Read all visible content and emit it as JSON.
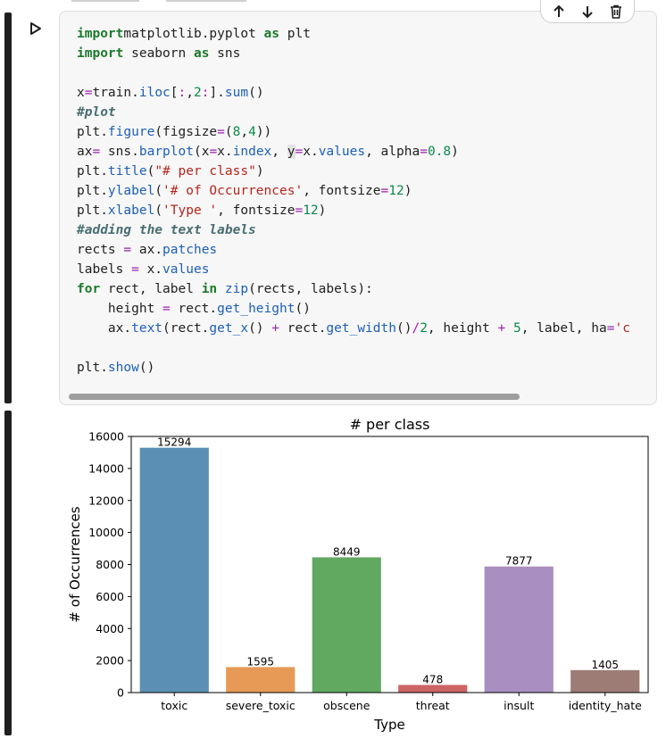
{
  "toolbar": {
    "move_up": "arrow-up-icon",
    "move_down": "arrow-down-icon",
    "delete": "trash-icon"
  },
  "code_lines": [
    [
      [
        "kw",
        "import"
      ],
      [
        "",
        "matplotlib.pyplot "
      ],
      [
        "kw",
        "as"
      ],
      [
        "",
        " plt"
      ]
    ],
    [
      [
        "kw",
        "import"
      ],
      [
        "",
        " seaborn "
      ],
      [
        "kw",
        "as"
      ],
      [
        "",
        " sns"
      ]
    ],
    [],
    [
      [
        "",
        "x"
      ],
      [
        "op",
        "="
      ],
      [
        "",
        "train."
      ],
      [
        "at",
        "iloc"
      ],
      [
        "",
        "["
      ],
      [
        "op",
        ":"
      ],
      [
        "",
        ","
      ],
      [
        "nm",
        "2"
      ],
      [
        "op",
        ":"
      ],
      [
        "",
        "]."
      ],
      [
        "fn",
        "sum"
      ],
      [
        "",
        "()"
      ]
    ],
    [
      [
        "cm",
        "#plot"
      ]
    ],
    [
      [
        "",
        "plt."
      ],
      [
        "fn",
        "figure"
      ],
      [
        "",
        "(figsize"
      ],
      [
        "op",
        "="
      ],
      [
        "",
        "("
      ],
      [
        "nm",
        "8"
      ],
      [
        "",
        ","
      ],
      [
        "nm",
        "4"
      ],
      [
        "",
        "))"
      ]
    ],
    [
      [
        "",
        "ax"
      ],
      [
        "op",
        "="
      ],
      [
        "",
        " sns."
      ],
      [
        "fn",
        "barplot"
      ],
      [
        "",
        "(x"
      ],
      [
        "op",
        "="
      ],
      [
        "",
        "x."
      ],
      [
        "at",
        "index"
      ],
      [
        "",
        ", "
      ],
      [
        "hl",
        "y"
      ],
      [
        "op",
        "="
      ],
      [
        "",
        "x."
      ],
      [
        "at",
        "values"
      ],
      [
        "",
        ", alpha"
      ],
      [
        "op",
        "="
      ],
      [
        "nm",
        "0.8"
      ],
      [
        "",
        ")"
      ]
    ],
    [
      [
        "",
        "plt."
      ],
      [
        "fn",
        "title"
      ],
      [
        "",
        "("
      ],
      [
        "st",
        "\"# per class\""
      ],
      [
        "",
        ")"
      ]
    ],
    [
      [
        "",
        "plt."
      ],
      [
        "fn",
        "ylabel"
      ],
      [
        "",
        "("
      ],
      [
        "st",
        "'# of Occurrences'"
      ],
      [
        "",
        ", fontsize"
      ],
      [
        "op",
        "="
      ],
      [
        "nm",
        "12"
      ],
      [
        "",
        ")"
      ]
    ],
    [
      [
        "",
        "plt."
      ],
      [
        "fn",
        "xlabel"
      ],
      [
        "",
        "("
      ],
      [
        "st",
        "'Type '"
      ],
      [
        "",
        ", fontsize"
      ],
      [
        "op",
        "="
      ],
      [
        "nm",
        "12"
      ],
      [
        "",
        ")"
      ]
    ],
    [
      [
        "cm",
        "#adding the text labels"
      ]
    ],
    [
      [
        "",
        "rects "
      ],
      [
        "op",
        "="
      ],
      [
        "",
        " ax."
      ],
      [
        "at",
        "patches"
      ]
    ],
    [
      [
        "",
        "labels "
      ],
      [
        "op",
        "="
      ],
      [
        "",
        " x."
      ],
      [
        "at",
        "values"
      ]
    ],
    [
      [
        "kw",
        "for"
      ],
      [
        "",
        " rect, label "
      ],
      [
        "kw",
        "in"
      ],
      [
        "",
        " "
      ],
      [
        "fn",
        "zip"
      ],
      [
        "",
        "(rects, labels):"
      ]
    ],
    [
      [
        "",
        "    height "
      ],
      [
        "op",
        "="
      ],
      [
        "",
        " rect."
      ],
      [
        "fn",
        "get_height"
      ],
      [
        "",
        "()"
      ]
    ],
    [
      [
        "",
        "    ax."
      ],
      [
        "fn",
        "text"
      ],
      [
        "",
        "(rect."
      ],
      [
        "fn",
        "get_x"
      ],
      [
        "",
        "() "
      ],
      [
        "op",
        "+"
      ],
      [
        "",
        " rect."
      ],
      [
        "fn",
        "get_width"
      ],
      [
        "",
        "()"
      ],
      [
        "op",
        "/"
      ],
      [
        "nm",
        "2"
      ],
      [
        "",
        ", height "
      ],
      [
        "op",
        "+"
      ],
      [
        "",
        " "
      ],
      [
        "nm",
        "5"
      ],
      [
        "",
        ", label, ha"
      ],
      [
        "op",
        "="
      ],
      [
        "st",
        "'c"
      ]
    ],
    [],
    [
      [
        "",
        "plt."
      ],
      [
        "fn",
        "show"
      ],
      [
        "",
        "()"
      ]
    ]
  ],
  "chart_data": {
    "type": "bar",
    "title": "# per class",
    "xlabel": "Type",
    "ylabel": "# of Occurrences",
    "categories": [
      "toxic",
      "severe_toxic",
      "obscene",
      "threat",
      "insult",
      "identity_hate"
    ],
    "values": [
      15294,
      1595,
      8449,
      478,
      7877,
      1405
    ],
    "data_labels": [
      "15294",
      "1595",
      "8449",
      "478",
      "7877",
      "1405"
    ],
    "colors": [
      "#3274a1",
      "#e1812c",
      "#3a923a",
      "#c03d3e",
      "#9372b2",
      "#845b53"
    ],
    "alpha": 0.8,
    "ylim": [
      0,
      16000
    ],
    "yticks": [
      0,
      2000,
      4000,
      6000,
      8000,
      10000,
      12000,
      14000,
      16000
    ],
    "ytick_labels": [
      "0",
      "2000",
      "4000",
      "6000",
      "8000",
      "10000",
      "12000",
      "14000",
      "16000"
    ]
  }
}
